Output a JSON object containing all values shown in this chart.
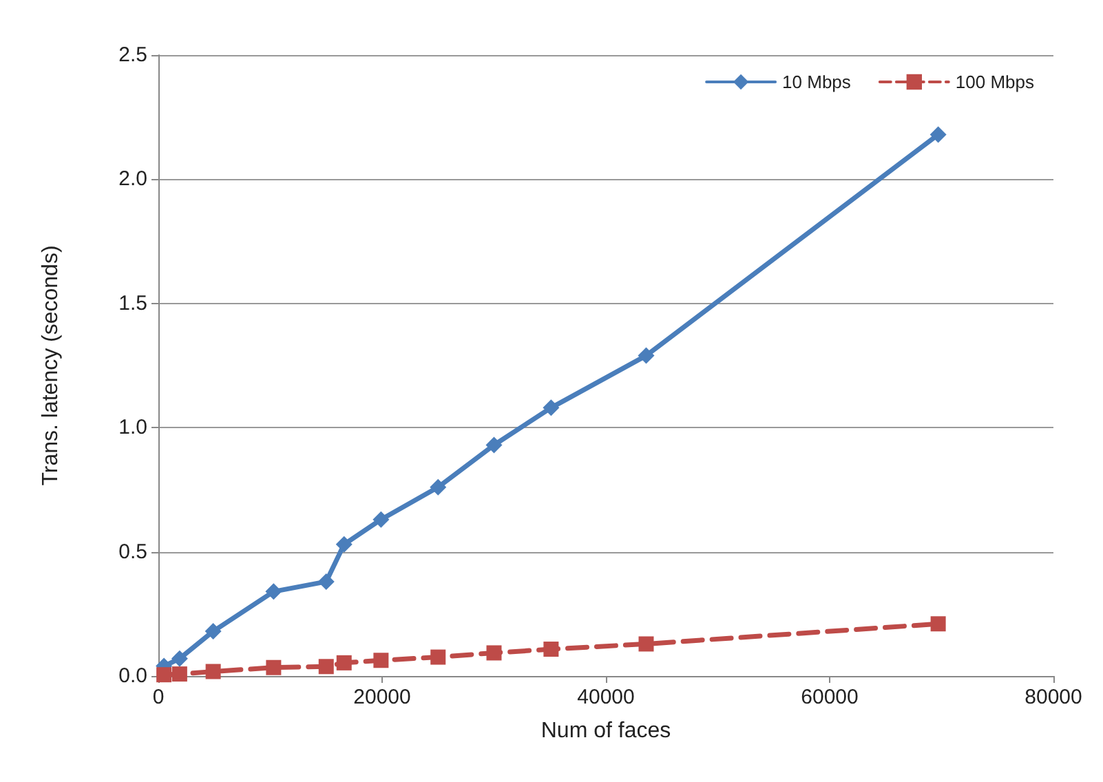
{
  "chart_data": {
    "type": "line",
    "xlabel": "Num of faces",
    "ylabel": "Trans. latency (seconds)",
    "x": [
      500,
      1900,
      4900,
      10300,
      15000,
      16600,
      19900,
      25000,
      30000,
      35100,
      43600,
      69700
    ],
    "series": [
      {
        "name": "10 Mbps",
        "color": "#4a7ebb",
        "marker": "diamond",
        "line_style": "solid",
        "values": [
          0.04,
          0.07,
          0.18,
          0.34,
          0.38,
          0.53,
          0.63,
          0.76,
          0.93,
          1.08,
          1.29,
          2.18
        ]
      },
      {
        "name": "100 Mbps",
        "color": "#be4b48",
        "marker": "square",
        "line_style": "dashed",
        "values": [
          0.005,
          0.008,
          0.018,
          0.034,
          0.038,
          0.053,
          0.063,
          0.076,
          0.093,
          0.108,
          0.129,
          0.21
        ]
      }
    ],
    "xlim": [
      0,
      80000
    ],
    "xticks": [
      0,
      20000,
      40000,
      60000,
      80000
    ],
    "ylim": [
      0,
      2.5
    ],
    "yticks": [
      {
        "value": 0,
        "label": "0.0"
      },
      {
        "value": 0.5,
        "label": "0.5"
      },
      {
        "value": 1,
        "label": "1.0"
      },
      {
        "value": 1.5,
        "label": "1.5"
      },
      {
        "value": 2,
        "label": "2.0"
      },
      {
        "value": 2.5,
        "label": "2.5"
      }
    ],
    "grid": "y",
    "legend": "top right"
  }
}
